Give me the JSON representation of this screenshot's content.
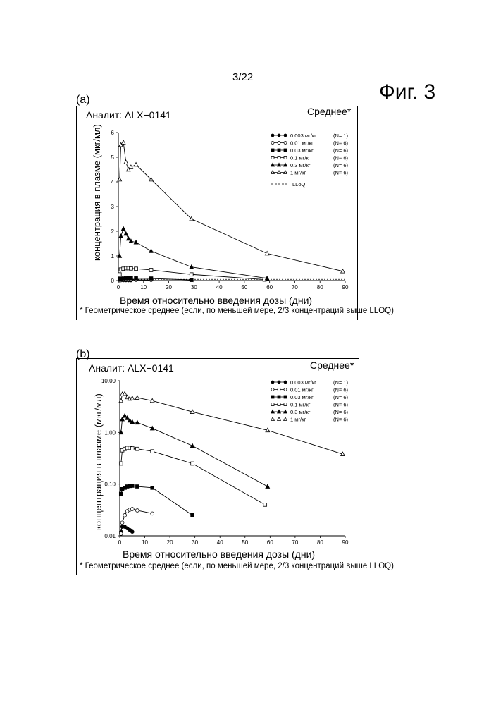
{
  "page_number": "3/22",
  "figure_label": "Фиг. 3",
  "footnote": "* Геометрическое среднее (если, по меньшей мере, 2/3 концентраций выше LLOQ)",
  "chart_data": [
    {
      "panel": "(a)",
      "type": "line",
      "title": "Аналит: ALX−0141",
      "subtitle": "Среднее*",
      "xlabel": "Время относительно введения дозы (дни)",
      "ylabel": "концентрация в плазме (мкг/мл)",
      "yscale": "linear",
      "xlim": [
        0,
        90
      ],
      "ylim": [
        0,
        6
      ],
      "xticks": [
        "0",
        "10",
        "20",
        "30",
        "40",
        "50",
        "60",
        "70",
        "80",
        "90"
      ],
      "yticks": [
        "0",
        "1",
        "2",
        "3",
        "4",
        "5",
        "6"
      ],
      "legend_position": "top-right",
      "lloq_label": "LLoQ",
      "lloq_value": 0.05,
      "series": [
        {
          "name": "0.003 мг/кг",
          "n": "(N= 1)",
          "marker": "circle-filled",
          "x": [
            0.5,
            1,
            2,
            3,
            4,
            5
          ],
          "y": [
            0.012,
            0.015,
            0.015,
            0.014,
            0.013,
            0.012
          ]
        },
        {
          "name": "0.01 мг/кг",
          "n": "(N= 6)",
          "marker": "circle-open",
          "x": [
            0.5,
            1,
            2,
            3,
            4,
            5,
            7,
            13
          ],
          "y": [
            0.011,
            0.018,
            0.025,
            0.03,
            0.032,
            0.033,
            0.031,
            0.027
          ]
        },
        {
          "name": "0.03 мг/кг",
          "n": "(N= 6)",
          "marker": "square-filled",
          "x": [
            0.5,
            1,
            2,
            3,
            4,
            5,
            7,
            13,
            29
          ],
          "y": [
            0.065,
            0.08,
            0.085,
            0.09,
            0.092,
            0.093,
            0.09,
            0.085,
            0.025
          ]
        },
        {
          "name": "0.1 мг/кг",
          "n": "(N= 6)",
          "marker": "square-open",
          "x": [
            0.5,
            1,
            2,
            3,
            4,
            5,
            7,
            13,
            29,
            58
          ],
          "y": [
            0.25,
            0.45,
            0.48,
            0.5,
            0.5,
            0.49,
            0.48,
            0.43,
            0.25,
            0.04
          ]
        },
        {
          "name": "0.3 мг/кг",
          "n": "(N= 6)",
          "marker": "triangle-filled",
          "x": [
            0.5,
            1,
            2,
            3,
            4,
            5,
            7,
            13,
            29,
            59
          ],
          "y": [
            1.0,
            1.8,
            2.1,
            1.9,
            1.7,
            1.6,
            1.55,
            1.2,
            0.55,
            0.09
          ]
        },
        {
          "name": "1 мг/кг",
          "n": "(N= 6)",
          "marker": "triangle-open",
          "x": [
            0.5,
            1,
            2,
            3,
            4,
            5,
            7,
            13,
            29,
            59,
            89
          ],
          "y": [
            4.1,
            5.5,
            5.6,
            4.8,
            4.5,
            4.6,
            4.7,
            4.1,
            2.5,
            1.1,
            0.38
          ]
        }
      ]
    },
    {
      "panel": "(b)",
      "type": "line",
      "title": "Аналит: ALX−0141",
      "subtitle": "Среднее*",
      "xlabel": "Время относительно введения дозы (дни)",
      "ylabel": "концентрация в плазме (мкг/мл)",
      "yscale": "log",
      "xlim": [
        0,
        90
      ],
      "ylim": [
        0.01,
        10
      ],
      "xticks": [
        "0",
        "10",
        "20",
        "30",
        "40",
        "50",
        "60",
        "70",
        "80",
        "90"
      ],
      "yticks": [
        "0.01",
        "0.10",
        "1.00",
        "10.00"
      ],
      "legend_position": "top-right",
      "series": [
        {
          "name": "0.003 мг/кг",
          "n": "(N= 1)",
          "marker": "circle-filled",
          "x": [
            0.5,
            1,
            2,
            3,
            4,
            5
          ],
          "y": [
            0.012,
            0.015,
            0.015,
            0.014,
            0.013,
            0.012
          ]
        },
        {
          "name": "0.01 мг/кг",
          "n": "(N= 6)",
          "marker": "circle-open",
          "x": [
            0.5,
            1,
            2,
            3,
            4,
            5,
            7,
            13
          ],
          "y": [
            0.011,
            0.018,
            0.025,
            0.03,
            0.032,
            0.033,
            0.031,
            0.027
          ]
        },
        {
          "name": "0.03 мг/кг",
          "n": "(N= 6)",
          "marker": "square-filled",
          "x": [
            0.5,
            1,
            2,
            3,
            4,
            5,
            7,
            13,
            29
          ],
          "y": [
            0.065,
            0.08,
            0.085,
            0.09,
            0.092,
            0.093,
            0.09,
            0.085,
            0.025
          ]
        },
        {
          "name": "0.1 мг/кг",
          "n": "(N= 6)",
          "marker": "square-open",
          "x": [
            0.5,
            1,
            2,
            3,
            4,
            5,
            7,
            13,
            29,
            58
          ],
          "y": [
            0.25,
            0.45,
            0.48,
            0.5,
            0.5,
            0.49,
            0.48,
            0.43,
            0.25,
            0.04
          ]
        },
        {
          "name": "0.3 мг/кг",
          "n": "(N= 6)",
          "marker": "triangle-filled",
          "x": [
            0.5,
            1,
            2,
            3,
            4,
            5,
            7,
            13,
            29,
            59
          ],
          "y": [
            1.0,
            1.8,
            2.1,
            1.9,
            1.7,
            1.6,
            1.55,
            1.2,
            0.55,
            0.09
          ]
        },
        {
          "name": "1 мг/кг",
          "n": "(N= 6)",
          "marker": "triangle-open",
          "x": [
            0.5,
            1,
            2,
            3,
            4,
            5,
            7,
            13,
            29,
            59,
            89
          ],
          "y": [
            4.1,
            5.5,
            5.6,
            4.8,
            4.5,
            4.6,
            4.7,
            4.1,
            2.5,
            1.1,
            0.38
          ]
        }
      ]
    }
  ]
}
